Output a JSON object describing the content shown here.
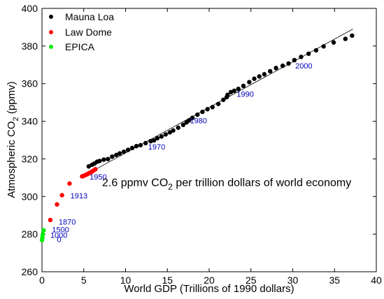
{
  "chart_data": {
    "type": "scatter",
    "title": "",
    "xlabel": "World GDP (Trillions of 1990 dollars)",
    "ylabel_parts": {
      "pre": "Atmospheric CO",
      "sub": "2",
      "post": " (ppmv)"
    },
    "xlim": [
      0,
      40
    ],
    "ylim": [
      260,
      400
    ],
    "xticks": [
      0,
      5,
      10,
      15,
      20,
      25,
      30,
      35,
      40
    ],
    "yticks": [
      260,
      280,
      300,
      320,
      340,
      360,
      380,
      400
    ],
    "legend_position": "top-left",
    "grid": false,
    "series": [
      {
        "name": "Mauna Loa",
        "color": "#000000",
        "points": [
          [
            5.6,
            316.0
          ],
          [
            6.0,
            316.9
          ],
          [
            6.3,
            317.6
          ],
          [
            6.6,
            318.5
          ],
          [
            6.9,
            318.9
          ],
          [
            7.4,
            319.6
          ],
          [
            7.9,
            319.9
          ],
          [
            8.4,
            321.2
          ],
          [
            8.9,
            322.1
          ],
          [
            9.3,
            322.9
          ],
          [
            9.8,
            323.8
          ],
          [
            10.3,
            324.8
          ],
          [
            10.8,
            325.8
          ],
          [
            11.3,
            326.8
          ],
          [
            11.8,
            327.3
          ],
          [
            12.4,
            328.4
          ],
          [
            13.0,
            329.4
          ],
          [
            13.4,
            329.8
          ],
          [
            13.8,
            331.0
          ],
          [
            14.3,
            331.9
          ],
          [
            14.8,
            333.0
          ],
          [
            15.3,
            334.1
          ],
          [
            15.7,
            335.1
          ],
          [
            16.3,
            336.6
          ],
          [
            16.9,
            338.1
          ],
          [
            17.3,
            339.4
          ],
          [
            17.6,
            340.5
          ],
          [
            18.0,
            341.8
          ],
          [
            18.6,
            343.5
          ],
          [
            19.2,
            345.0
          ],
          [
            19.8,
            346.4
          ],
          [
            20.4,
            347.5
          ],
          [
            21.1,
            349.2
          ],
          [
            21.7,
            351.4
          ],
          [
            22.1,
            352.8
          ],
          [
            22.2,
            354.0
          ],
          [
            22.6,
            355.5
          ],
          [
            23.0,
            356.2
          ],
          [
            23.5,
            357.2
          ],
          [
            24.1,
            358.8
          ],
          [
            24.8,
            360.8
          ],
          [
            25.4,
            362.6
          ],
          [
            26.0,
            363.8
          ],
          [
            26.6,
            365.0
          ],
          [
            27.3,
            366.6
          ],
          [
            28.0,
            368.3
          ],
          [
            28.8,
            369.5
          ],
          [
            29.5,
            370.7
          ],
          [
            30.2,
            372.5
          ],
          [
            31.0,
            374.2
          ],
          [
            31.9,
            375.9
          ],
          [
            32.8,
            377.7
          ],
          [
            33.7,
            379.8
          ],
          [
            34.9,
            381.9
          ],
          [
            36.3,
            383.8
          ],
          [
            37.1,
            385.5
          ]
        ]
      },
      {
        "name": "Law Dome",
        "color": "#ff0000",
        "points": [
          [
            4.8,
            310.7
          ],
          [
            5.0,
            311.0
          ],
          [
            5.2,
            311.4
          ],
          [
            5.4,
            311.8
          ],
          [
            5.6,
            312.3
          ],
          [
            5.8,
            312.8
          ],
          [
            6.0,
            313.3
          ],
          [
            6.2,
            313.9
          ],
          [
            6.4,
            314.5
          ],
          [
            3.3,
            306.9
          ],
          [
            2.4,
            300.7
          ],
          [
            1.8,
            295.8
          ],
          [
            1.0,
            287.5
          ]
        ]
      },
      {
        "name": "EPICA",
        "color": "#00ee00",
        "points": [
          [
            0.2,
            282.0
          ],
          [
            0.1,
            279.8
          ],
          [
            0.05,
            278.2
          ],
          [
            0.0,
            276.8
          ]
        ]
      }
    ],
    "trend_line": {
      "from": [
        5.0,
        311.0
      ],
      "to": [
        37.2,
        389.0
      ]
    },
    "year_labels": [
      {
        "text": "2000",
        "x": 30.3,
        "y": 368.0
      },
      {
        "text": "1990",
        "x": 23.3,
        "y": 353.0
      },
      {
        "text": "1980",
        "x": 17.7,
        "y": 339.0
      },
      {
        "text": "1970",
        "x": 12.7,
        "y": 325.0
      },
      {
        "text": "1950",
        "x": 5.7,
        "y": 309.0
      },
      {
        "text": "1913",
        "x": 3.4,
        "y": 299.0
      },
      {
        "text": "1870",
        "x": 2.0,
        "y": 285.0
      },
      {
        "text": "1500",
        "x": 1.2,
        "y": 281.0
      },
      {
        "text": "1000",
        "x": 1.0,
        "y": 278.0
      },
      {
        "text": "0",
        "x": 1.8,
        "y": 275.8
      }
    ],
    "annotation": {
      "pre": "2.6 ppmv CO",
      "sub": "2",
      "post": " per trillion dollars of world economy",
      "x": 7.2,
      "y": 305.5
    },
    "label_color": "#0000bb"
  }
}
